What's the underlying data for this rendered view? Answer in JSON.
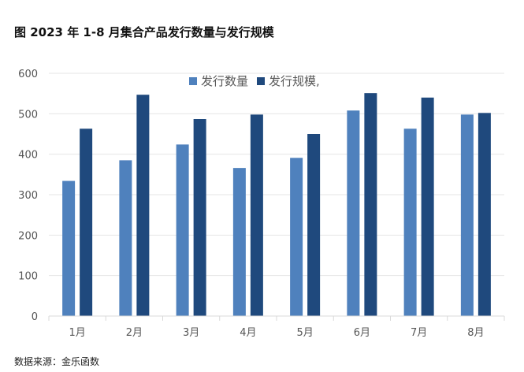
{
  "title": "图 2023 年 1-8 月集合产品发行数量与发行规模",
  "source": "数据来源：金乐函数",
  "chart_data": {
    "type": "bar",
    "categories": [
      "1月",
      "2月",
      "3月",
      "4月",
      "5月",
      "6月",
      "7月",
      "8月"
    ],
    "series": [
      {
        "name": "发行数量",
        "color": "#4F81BD",
        "values": [
          334,
          385,
          424,
          366,
          391,
          508,
          463,
          498
        ]
      },
      {
        "name": "发行规模,",
        "color": "#1F497D",
        "values": [
          463,
          547,
          487,
          498,
          450,
          551,
          540,
          502
        ]
      }
    ],
    "ylim": [
      0,
      600
    ],
    "yticks": [
      0,
      100,
      200,
      300,
      400,
      500,
      600
    ],
    "grid": true,
    "legend": "top-center"
  }
}
